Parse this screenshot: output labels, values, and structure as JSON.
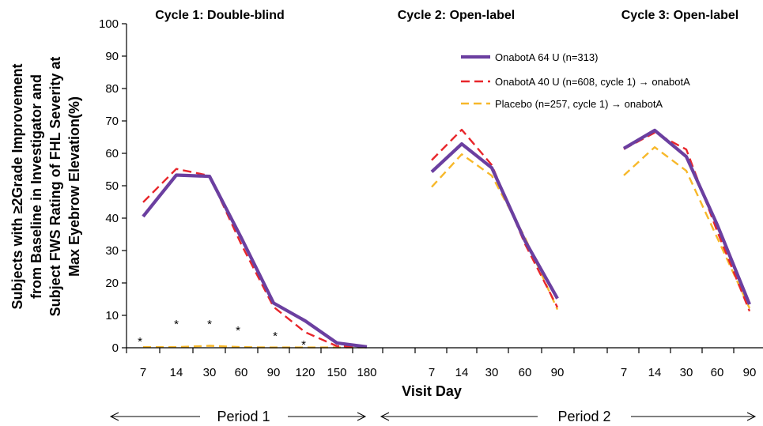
{
  "chart_data": {
    "type": "line",
    "ylabel_lines": [
      "Subjects with ≥2Grade Improvement",
      "from Baseline in Investigator and",
      "Subject  FWS Rating of FHL Severity at",
      "Max Eyebrow Elevation(%)"
    ],
    "xlabel": "Visit Day",
    "ylim": [
      0,
      100
    ],
    "yticks": [
      0,
      10,
      20,
      30,
      40,
      50,
      60,
      70,
      80,
      90,
      100
    ],
    "grid": false,
    "legend_position": "top-right",
    "colors": {
      "onabota64": "#6b3fa0",
      "onabota40": "#e8262b",
      "placebo": "#f7b82a"
    },
    "cycles": [
      {
        "title": "Cycle 1: Double-blind",
        "days": [
          "7",
          "14",
          "30",
          "60",
          "90",
          "120",
          "150",
          "180"
        ],
        "series": [
          {
            "key": "onabota64",
            "values": [
              40.5,
              53.3,
              52.9,
              34,
              13.8,
              8.3,
              1.5,
              0.3
            ]
          },
          {
            "key": "onabota40",
            "values": [
              44.9,
              55.2,
              53.1,
              32,
              12.6,
              4.8,
              0.5,
              0.2
            ]
          },
          {
            "key": "placebo",
            "values": [
              0.2,
              0.2,
              0.6,
              0.2,
              0.1,
              0.1,
              0.1,
              0.1
            ]
          }
        ],
        "significance": [
          "*",
          "*",
          "*",
          "*",
          "*",
          "*",
          "",
          ""
        ]
      },
      {
        "title": "Cycle 2: Open-label",
        "days": [
          "7",
          "14",
          "30",
          "60",
          "90"
        ],
        "series": [
          {
            "key": "onabota64",
            "values": [
              54.3,
              62.9,
              55.5,
              33,
              15.2
            ]
          },
          {
            "key": "onabota40",
            "values": [
              57.9,
              67.3,
              56.4,
              32,
              12.5
            ]
          },
          {
            "key": "placebo",
            "values": [
              49.6,
              59.7,
              53.1,
              34,
              11.8
            ]
          }
        ]
      },
      {
        "title": "Cycle 3: Open-label",
        "days": [
          "7",
          "14",
          "30",
          "60",
          "90"
        ],
        "series": [
          {
            "key": "onabota64",
            "values": [
              61.5,
              67.1,
              59,
              38,
              13.4
            ]
          },
          {
            "key": "onabota40",
            "values": [
              61.3,
              66.4,
              61.2,
              36,
              11.3
            ]
          },
          {
            "key": "placebo",
            "values": [
              53.2,
              61.9,
              54.6,
              34,
              12.2
            ]
          }
        ]
      }
    ],
    "legend": [
      {
        "key": "onabota64",
        "label": "OnabotA 64 U (n=313)",
        "style": "solid"
      },
      {
        "key": "onabota40",
        "label": "OnabotA 40 U (n=608, cycle 1) → onabotA",
        "style": "dashed"
      },
      {
        "key": "placebo",
        "label": "Placebo (n=257, cycle 1) → onabotA",
        "style": "dashed"
      }
    ],
    "periods": [
      {
        "label": "Period 1"
      },
      {
        "label": "Period 2"
      }
    ]
  }
}
